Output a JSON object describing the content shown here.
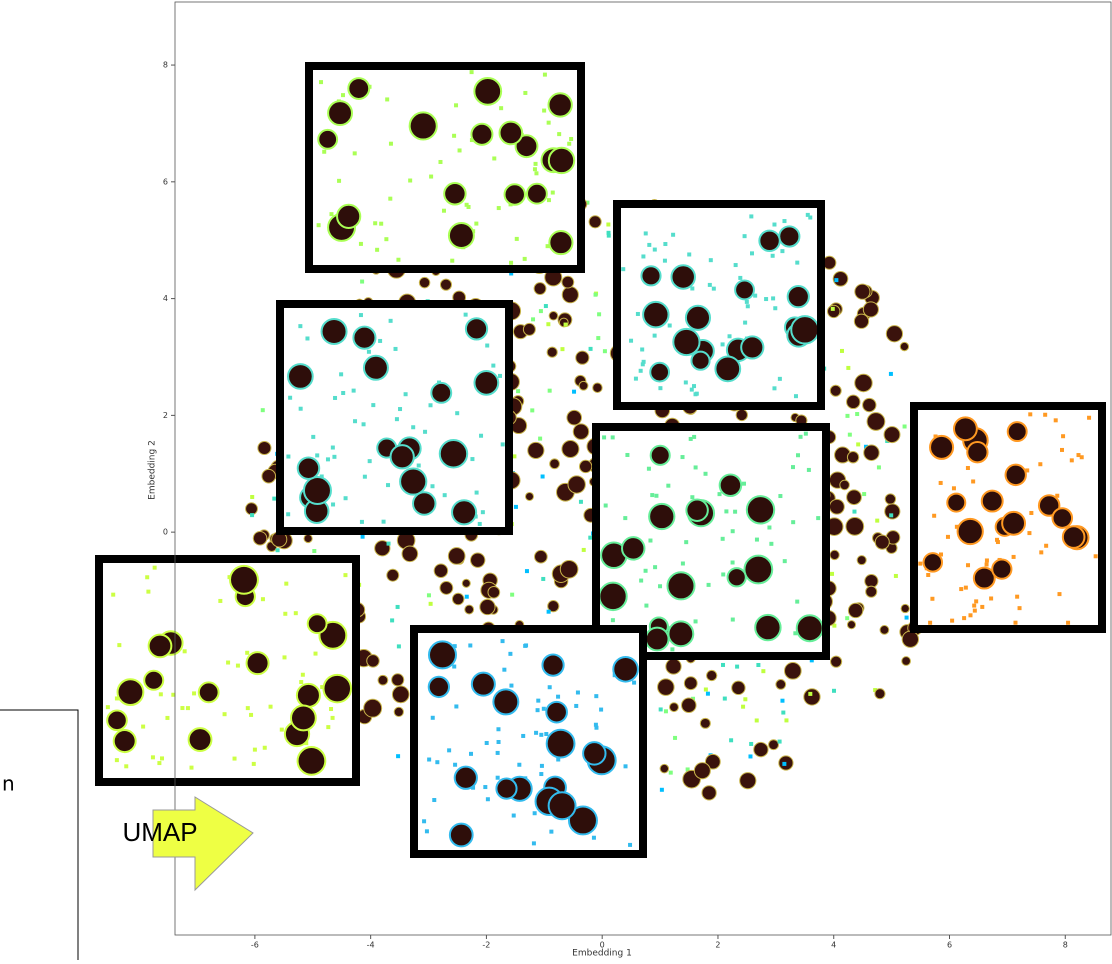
{
  "plot": {
    "xlabel": "Embedding 1",
    "ylabel": "Embedding 2",
    "xlim": [
      -7.38,
      8.79
    ],
    "ylim": [
      -6.9,
      9.08
    ],
    "xticks": [
      -6,
      -4,
      -2,
      0,
      2,
      4,
      6,
      8
    ],
    "yticks": [
      0,
      2,
      4,
      6,
      8
    ]
  },
  "arrow": {
    "label": "UMAP"
  },
  "side_panel": {
    "text": "n"
  }
}
